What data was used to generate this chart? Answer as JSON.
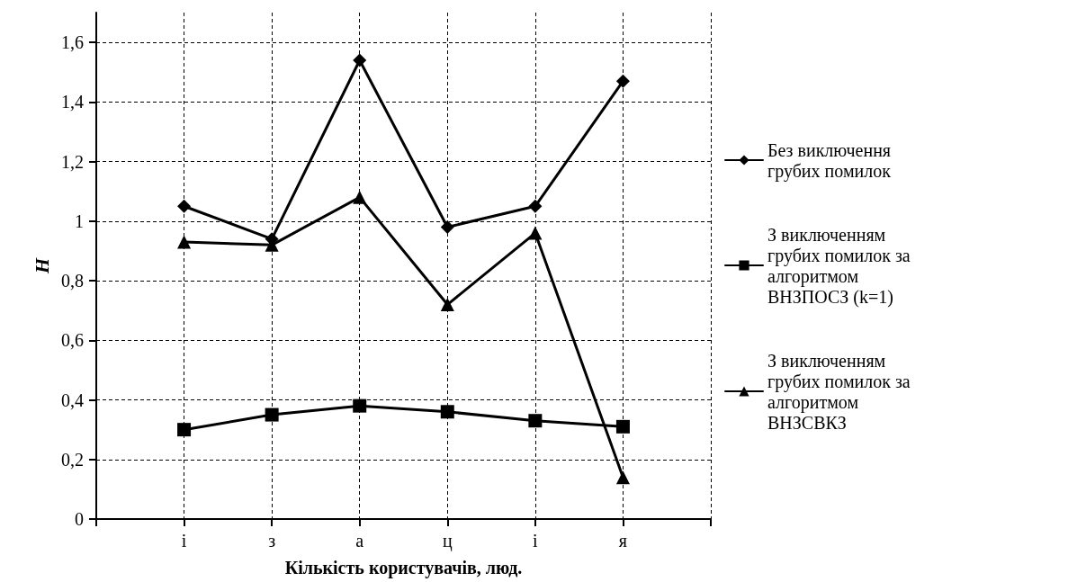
{
  "chart_data": {
    "type": "line",
    "xlabel": "Кількість користувачів, люд.",
    "ylabel": "H",
    "categories": [
      null,
      "і",
      "з",
      "а",
      "ц",
      "і",
      "я",
      null
    ],
    "ylim": [
      0,
      1.7
    ],
    "yticks": [
      0,
      {
        "value": 0.2,
        "label": "0,2"
      },
      {
        "value": 0.4,
        "label": "0,4"
      },
      {
        "value": 0.6,
        "label": "0,6"
      },
      {
        "value": 0.8,
        "label": "0,8"
      },
      1,
      {
        "value": 1.2,
        "label": "1,2"
      },
      {
        "value": 1.4,
        "label": "1,4"
      },
      {
        "value": 1.6,
        "label": "1,6"
      }
    ],
    "grid": true,
    "legend": "right",
    "line_style": "solid",
    "series": [
      {
        "name": "Без виключення грубих помилок",
        "color": "#000000",
        "marker": "diamond",
        "values": [
          null,
          1.05,
          0.94,
          1.54,
          0.98,
          1.05,
          1.47,
          null
        ]
      },
      {
        "name": "З виключенням грубих помилок за алгоритмом ВНЗПОСЗ (k=1)",
        "color": "#000000",
        "marker": "square",
        "values": [
          null,
          0.3,
          0.35,
          0.38,
          0.36,
          0.33,
          0.31,
          null
        ]
      },
      {
        "name": "З виключенням грубих помилок за алгоритмом ВНЗСВКЗ",
        "color": "#000000",
        "marker": "triangle",
        "values": [
          null,
          0.93,
          0.92,
          1.08,
          0.72,
          0.96,
          0.14,
          null
        ]
      }
    ]
  }
}
